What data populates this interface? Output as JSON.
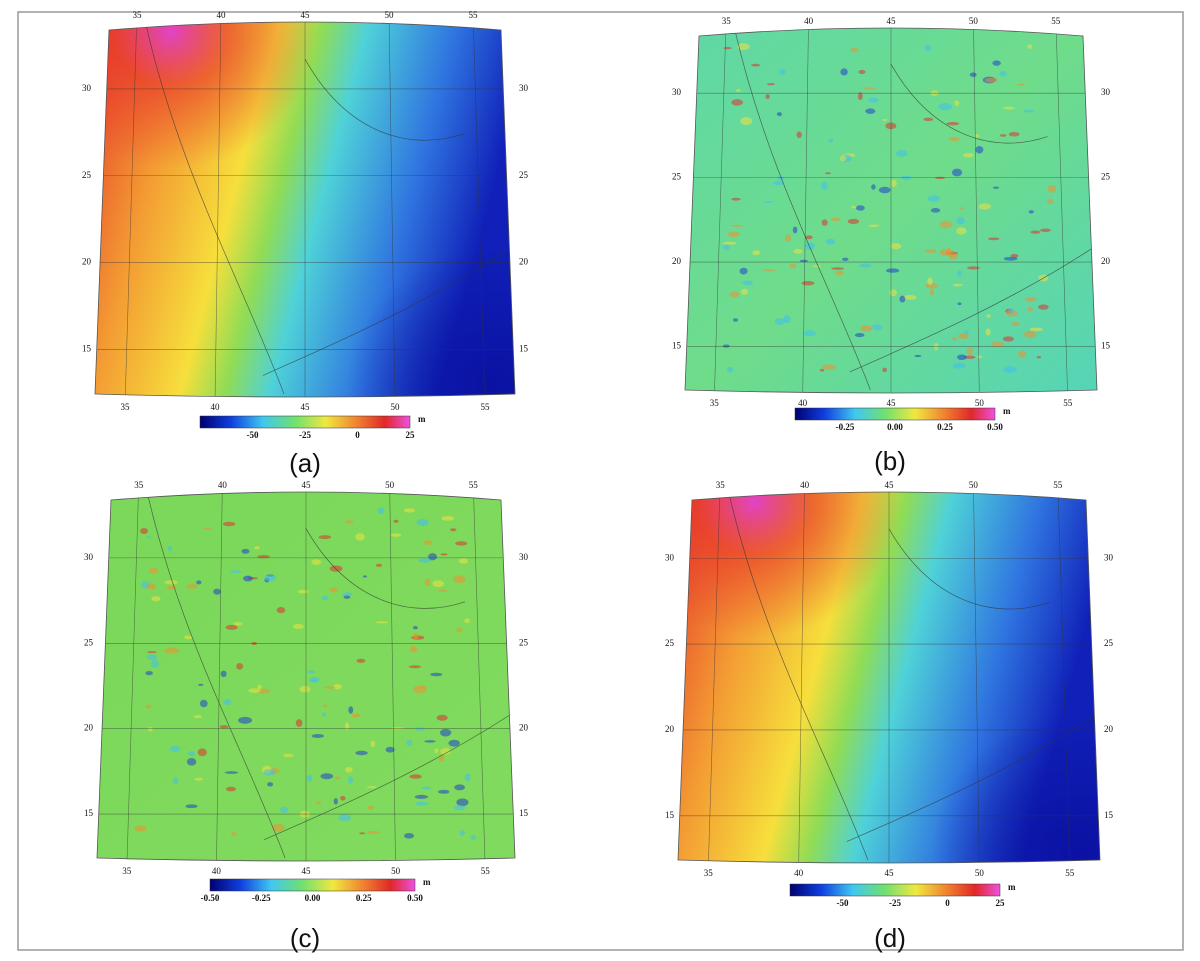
{
  "panels": [
    {
      "label": "(a)",
      "top_lon_labels": [
        "35",
        "40",
        "45",
        "50",
        "55"
      ],
      "bottom_lon_labels": [
        "35",
        "40",
        "45",
        "50",
        "55"
      ],
      "left_lat_labels": [
        "30",
        "25",
        "20",
        "15"
      ],
      "right_lat_labels": [
        "30",
        "25",
        "20",
        "15"
      ],
      "colorbar_labels": [
        "-50",
        "-25",
        "0",
        "25"
      ],
      "unit": "m"
    },
    {
      "label": "(b)",
      "top_lon_labels": [
        "35",
        "40",
        "45",
        "50",
        "55"
      ],
      "bottom_lon_labels": [
        "35",
        "40",
        "45",
        "50",
        "55"
      ],
      "left_lat_labels": [
        "30",
        "25",
        "20",
        "15"
      ],
      "right_lat_labels": [
        "30",
        "25",
        "20",
        "15"
      ],
      "colorbar_labels": [
        "-0.25",
        "0.00",
        "0.25",
        "0.50"
      ],
      "unit": "m"
    },
    {
      "label": "(c)",
      "top_lon_labels": [
        "35",
        "40",
        "45",
        "50",
        "55"
      ],
      "bottom_lon_labels": [
        "35",
        "40",
        "45",
        "50",
        "55"
      ],
      "left_lat_labels": [
        "30",
        "25",
        "20",
        "15"
      ],
      "right_lat_labels": [
        "30",
        "25",
        "20",
        "15"
      ],
      "colorbar_labels": [
        "-0.50",
        "-0.25",
        "0.00",
        "0.25",
        "0.50"
      ],
      "unit": "m"
    },
    {
      "label": "(d)",
      "top_lon_labels": [
        "35",
        "40",
        "45",
        "50",
        "55"
      ],
      "bottom_lon_labels": [
        "35",
        "40",
        "45",
        "50",
        "55"
      ],
      "left_lat_labels": [
        "30",
        "25",
        "20",
        "15"
      ],
      "right_lat_labels": [
        "30",
        "25",
        "20",
        "15"
      ],
      "colorbar_labels": [
        "-50",
        "-25",
        "0",
        "25"
      ],
      "unit": "m"
    }
  ]
}
